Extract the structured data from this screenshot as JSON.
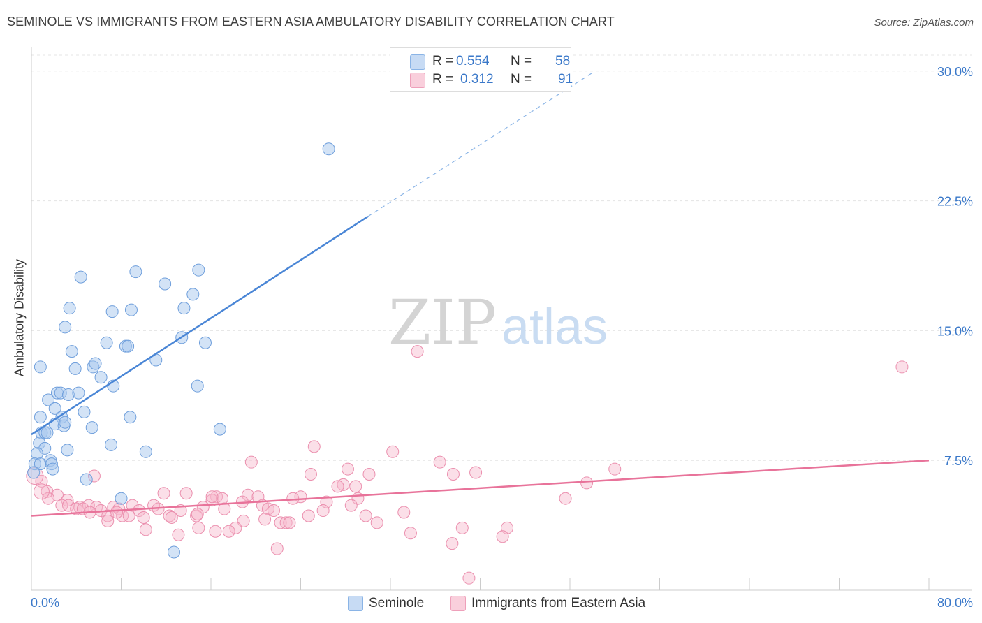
{
  "title": "SEMINOLE VS IMMIGRANTS FROM EASTERN ASIA AMBULATORY DISABILITY CORRELATION CHART",
  "source": "Source: ZipAtlas.com",
  "watermark": {
    "zip": "ZIP",
    "atlas": "atlas"
  },
  "legend": {
    "rows": [
      {
        "r_label": "R =",
        "r_value": "0.554",
        "n_label": "N =",
        "n_value": "58",
        "color": "#a8c8ee"
      },
      {
        "r_label": "R =",
        "r_value": "0.312",
        "n_label": "N =",
        "n_value": "91",
        "color": "#f6b8cc"
      }
    ]
  },
  "bottom_legend": [
    {
      "label": "Seminole",
      "color": "#a8c8ee"
    },
    {
      "label": "Immigrants from Eastern Asia",
      "color": "#f6b8cc"
    }
  ],
  "chart_data": {
    "type": "scatter",
    "xlabel": "",
    "ylabel": "Ambulatory Disability",
    "xlim": [
      0,
      80
    ],
    "ylim": [
      0,
      31
    ],
    "x_tick_labels": [
      "0.0%",
      "80.0%"
    ],
    "y_ticks": [
      7.5,
      15.0,
      22.5,
      30.0
    ],
    "y_tick_labels": [
      "7.5%",
      "15.0%",
      "22.5%",
      "30.0%"
    ],
    "grid": true,
    "legend_position": "top-center",
    "colors": {
      "seminole": "#4a86d6",
      "immigrants": "#e8739a",
      "seminole_fill": "#a8c8ee",
      "immigrants_fill": "#f6b8cc",
      "axis_text": "#3a78c9"
    },
    "series": [
      {
        "name": "Seminole",
        "trend": {
          "x": [
            0.0,
            30.0
          ],
          "y": [
            9.0,
            21.6
          ],
          "dashed_to": [
            50.0,
            29.9
          ]
        },
        "points": [
          [
            26.5,
            25.5
          ],
          [
            4.4,
            18.1
          ],
          [
            9.3,
            18.4
          ],
          [
            14.9,
            18.5
          ],
          [
            11.9,
            17.7
          ],
          [
            14.4,
            17.1
          ],
          [
            3.4,
            16.3
          ],
          [
            7.2,
            16.1
          ],
          [
            8.9,
            16.2
          ],
          [
            13.6,
            16.3
          ],
          [
            3.0,
            15.2
          ],
          [
            6.7,
            14.3
          ],
          [
            8.4,
            14.1
          ],
          [
            8.6,
            14.1
          ],
          [
            13.4,
            14.6
          ],
          [
            15.5,
            14.3
          ],
          [
            3.6,
            13.8
          ],
          [
            0.8,
            12.9
          ],
          [
            3.9,
            12.8
          ],
          [
            5.5,
            12.9
          ],
          [
            5.7,
            13.1
          ],
          [
            11.1,
            13.3
          ],
          [
            6.2,
            12.3
          ],
          [
            7.3,
            11.8
          ],
          [
            14.8,
            11.8
          ],
          [
            2.3,
            11.4
          ],
          [
            2.6,
            11.4
          ],
          [
            3.3,
            11.3
          ],
          [
            4.2,
            11.4
          ],
          [
            1.5,
            11.0
          ],
          [
            2.1,
            10.5
          ],
          [
            4.7,
            10.3
          ],
          [
            0.8,
            10.0
          ],
          [
            2.7,
            10.0
          ],
          [
            8.8,
            10.0
          ],
          [
            2.1,
            9.6
          ],
          [
            2.9,
            9.5
          ],
          [
            3.0,
            9.7
          ],
          [
            5.4,
            9.4
          ],
          [
            16.8,
            9.3
          ],
          [
            0.9,
            9.1
          ],
          [
            1.2,
            9.1
          ],
          [
            1.4,
            9.1
          ],
          [
            0.7,
            8.5
          ],
          [
            7.1,
            8.4
          ],
          [
            1.2,
            8.2
          ],
          [
            3.2,
            8.1
          ],
          [
            10.2,
            8.0
          ],
          [
            0.5,
            7.9
          ],
          [
            0.3,
            7.3
          ],
          [
            0.8,
            7.3
          ],
          [
            1.7,
            7.5
          ],
          [
            1.8,
            7.3
          ],
          [
            1.9,
            7.0
          ],
          [
            4.9,
            6.4
          ],
          [
            8.0,
            5.3
          ],
          [
            12.7,
            2.2
          ],
          [
            0.2,
            6.8
          ]
        ]
      },
      {
        "name": "Immigrants from Eastern Asia",
        "trend": {
          "x": [
            0.0,
            80.0
          ],
          "y": [
            4.3,
            7.5
          ]
        },
        "points": [
          [
            34.4,
            13.8
          ],
          [
            77.6,
            12.9
          ],
          [
            25.2,
            8.3
          ],
          [
            32.2,
            8.0
          ],
          [
            19.6,
            7.4
          ],
          [
            36.4,
            7.4
          ],
          [
            28.2,
            7.0
          ],
          [
            52.0,
            7.0
          ],
          [
            24.9,
            6.7
          ],
          [
            30.1,
            6.7
          ],
          [
            37.6,
            6.7
          ],
          [
            39.6,
            6.8
          ],
          [
            5.6,
            6.6
          ],
          [
            27.8,
            6.1
          ],
          [
            27.3,
            6.0
          ],
          [
            28.9,
            6.0
          ],
          [
            49.5,
            6.2
          ],
          [
            0.9,
            6.3
          ],
          [
            1.4,
            5.7
          ],
          [
            11.8,
            5.6
          ],
          [
            13.8,
            5.6
          ],
          [
            19.3,
            5.5
          ],
          [
            16.5,
            5.4
          ],
          [
            20.2,
            5.4
          ],
          [
            24.0,
            5.4
          ],
          [
            29.1,
            5.3
          ],
          [
            2.3,
            5.5
          ],
          [
            3.2,
            5.2
          ],
          [
            1.5,
            5.3
          ],
          [
            16.1,
            5.2
          ],
          [
            17.0,
            5.3
          ],
          [
            23.3,
            5.3
          ],
          [
            47.6,
            5.3
          ],
          [
            18.8,
            5.1
          ],
          [
            26.3,
            5.1
          ],
          [
            2.7,
            4.9
          ],
          [
            3.3,
            4.9
          ],
          [
            4.3,
            4.8
          ],
          [
            5.1,
            4.9
          ],
          [
            5.8,
            4.8
          ],
          [
            7.3,
            4.8
          ],
          [
            9.0,
            4.9
          ],
          [
            10.9,
            4.9
          ],
          [
            15.3,
            4.8
          ],
          [
            20.6,
            4.9
          ],
          [
            21.1,
            4.7
          ],
          [
            28.5,
            4.9
          ],
          [
            4.0,
            4.7
          ],
          [
            4.6,
            4.7
          ],
          [
            6.2,
            4.6
          ],
          [
            7.8,
            4.7
          ],
          [
            9.6,
            4.6
          ],
          [
            11.3,
            4.7
          ],
          [
            13.3,
            4.6
          ],
          [
            17.2,
            4.7
          ],
          [
            21.6,
            4.6
          ],
          [
            26.0,
            4.6
          ],
          [
            33.2,
            4.5
          ],
          [
            5.2,
            4.5
          ],
          [
            6.8,
            4.3
          ],
          [
            8.1,
            4.3
          ],
          [
            10.0,
            4.2
          ],
          [
            12.3,
            4.3
          ],
          [
            14.7,
            4.3
          ],
          [
            18.9,
            4.0
          ],
          [
            24.7,
            4.3
          ],
          [
            29.8,
            4.3
          ],
          [
            6.8,
            4.0
          ],
          [
            8.7,
            4.3
          ],
          [
            12.5,
            4.2
          ],
          [
            14.8,
            4.4
          ],
          [
            20.8,
            4.1
          ],
          [
            22.2,
            3.9
          ],
          [
            22.7,
            3.9
          ],
          [
            23.0,
            3.9
          ],
          [
            30.8,
            3.9
          ],
          [
            7.6,
            4.5
          ],
          [
            18.2,
            3.6
          ],
          [
            10.2,
            3.5
          ],
          [
            14.9,
            3.6
          ],
          [
            16.4,
            3.4
          ],
          [
            17.6,
            3.4
          ],
          [
            13.1,
            3.2
          ],
          [
            33.8,
            3.3
          ],
          [
            38.4,
            3.6
          ],
          [
            42.4,
            3.6
          ],
          [
            37.5,
            2.7
          ],
          [
            42.0,
            3.1
          ],
          [
            21.9,
            2.4
          ],
          [
            39.0,
            0.7
          ],
          [
            16.1,
            5.4
          ]
        ]
      }
    ]
  }
}
